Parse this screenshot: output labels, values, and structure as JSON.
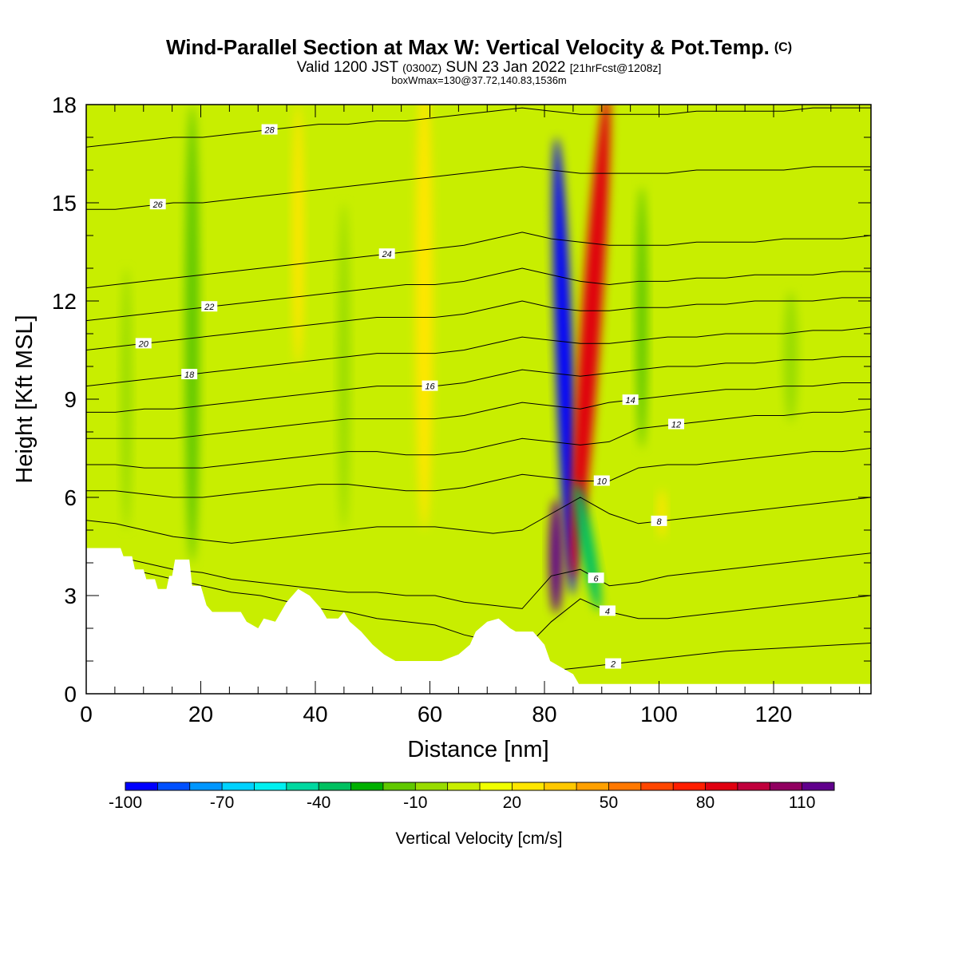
{
  "titles": {
    "main": "Wind-Parallel Section at Max W: Vertical Velocity & Pot.Temp.",
    "copyright_mark": "(C)",
    "valid_prefix": "Valid 1200 JST",
    "valid_zulu": "(0300Z)",
    "valid_date": "SUN 23 Jan 2022",
    "forecast": "[21hrFcst@1208z]",
    "box_info": "boxWmax=130@37.72,140.83,1536m"
  },
  "chart_data": {
    "type": "heatmap",
    "xlabel": "Distance [nm]",
    "ylabel": "Height [Kft MSL]",
    "xlim": [
      0,
      137
    ],
    "ylim": [
      0,
      18
    ],
    "x_ticks": [
      0,
      20,
      40,
      60,
      80,
      100,
      120
    ],
    "y_ticks": [
      0,
      3,
      6,
      9,
      12,
      15,
      18
    ],
    "colorbar": {
      "label": "Vertical Velocity [cm/s]",
      "tick_labels": [
        "-100",
        "-70",
        "-40",
        "-10",
        "20",
        "50",
        "80",
        "110"
      ],
      "colors": [
        "#0000ff",
        "#0050ff",
        "#0096ff",
        "#00d2ff",
        "#00f0f0",
        "#00d8a0",
        "#00c060",
        "#00b000",
        "#60c800",
        "#98dc00",
        "#c8ee00",
        "#f0ff00",
        "#ffe600",
        "#ffc800",
        "#ffa000",
        "#ff7800",
        "#ff4600",
        "#ff1e00",
        "#e00010",
        "#c0003c",
        "#900060",
        "#60008c"
      ]
    },
    "background_updraft_color": "#c8ee00",
    "terrain_profile": [
      [
        0,
        4.45
      ],
      [
        6,
        4.45
      ],
      [
        6.5,
        4.2
      ],
      [
        8,
        4.2
      ],
      [
        8.5,
        3.8
      ],
      [
        10,
        3.8
      ],
      [
        10.5,
        3.5
      ],
      [
        12,
        3.5
      ],
      [
        12.5,
        3.2
      ],
      [
        14,
        3.2
      ],
      [
        14.5,
        3.6
      ],
      [
        15,
        3.6
      ],
      [
        15.5,
        4.1
      ],
      [
        18,
        4.1
      ],
      [
        18.5,
        3.3
      ],
      [
        20,
        3.3
      ],
      [
        21,
        2.7
      ],
      [
        22,
        2.5
      ],
      [
        27,
        2.5
      ],
      [
        28,
        2.2
      ],
      [
        30,
        2.0
      ],
      [
        31,
        2.3
      ],
      [
        33,
        2.2
      ],
      [
        35,
        2.8
      ],
      [
        37,
        3.2
      ],
      [
        39,
        3.0
      ],
      [
        41,
        2.6
      ],
      [
        42,
        2.3
      ],
      [
        44,
        2.3
      ],
      [
        45,
        2.5
      ],
      [
        46,
        2.2
      ],
      [
        48,
        1.9
      ],
      [
        50,
        1.5
      ],
      [
        52,
        1.2
      ],
      [
        54,
        1.0
      ],
      [
        62,
        1.0
      ],
      [
        65,
        1.2
      ],
      [
        67,
        1.5
      ],
      [
        68,
        1.9
      ],
      [
        70,
        2.2
      ],
      [
        72,
        2.3
      ],
      [
        74,
        2.0
      ],
      [
        75,
        1.9
      ],
      [
        78,
        1.9
      ],
      [
        80,
        1.5
      ],
      [
        81,
        1.0
      ],
      [
        83,
        0.8
      ],
      [
        85,
        0.6
      ],
      [
        86,
        0.3
      ],
      [
        137,
        0.3
      ]
    ],
    "vertical_velocity_features": [
      {
        "name": "downdraft-core",
        "x": 83.5,
        "y": 10.0,
        "width": 3.0,
        "height": 14.0,
        "value": -100,
        "rotate": -2
      },
      {
        "name": "updraft-core",
        "x": 88.0,
        "y": 11.0,
        "width": 3.5,
        "height": 15.0,
        "value": 80,
        "rotate": 4
      },
      {
        "name": "low-level-updraft",
        "x": 82.0,
        "y": 4.2,
        "width": 2.4,
        "height": 3.5,
        "value": 110,
        "rotate": 0
      },
      {
        "name": "low-level-downdraft",
        "x": 87.5,
        "y": 4.5,
        "width": 2.5,
        "height": 4.0,
        "value": -40,
        "rotate": -10
      },
      {
        "name": "downdraft-west",
        "x": 18.5,
        "y": 11.0,
        "width": 2.5,
        "height": 14.0,
        "value": -20,
        "rotate": 0
      },
      {
        "name": "downdraft-east",
        "x": 97.0,
        "y": 11.5,
        "width": 2.0,
        "height": 8.0,
        "value": -20,
        "rotate": 0
      },
      {
        "name": "downdraft-far-east",
        "x": 123.0,
        "y": 10.3,
        "width": 2.5,
        "height": 4.0,
        "value": -10,
        "rotate": 0
      },
      {
        "name": "updraft-band-60",
        "x": 59.0,
        "y": 12.0,
        "width": 3.0,
        "height": 14.0,
        "value": 20,
        "rotate": 0
      },
      {
        "name": "updraft-band-37",
        "x": 37.0,
        "y": 14.0,
        "width": 2.0,
        "height": 8.0,
        "value": 20,
        "rotate": 0
      },
      {
        "name": "updraft-band-100",
        "x": 100.5,
        "y": 5.5,
        "width": 1.5,
        "height": 1.5,
        "value": 20,
        "rotate": 0
      },
      {
        "name": "downdraft-band-45",
        "x": 45.0,
        "y": 10.0,
        "width": 2.0,
        "height": 10.0,
        "value": -10,
        "rotate": 0
      },
      {
        "name": "downdraft-band-8",
        "x": 7.0,
        "y": 9.0,
        "width": 1.8,
        "height": 8.0,
        "value": -10,
        "rotate": 0
      }
    ],
    "theta_contours": [
      {
        "label": "2",
        "y": [
          0.6,
          0.6,
          0.6,
          0.6,
          0.6,
          0.6,
          0.6,
          0.6,
          0.6,
          0.6,
          0.6,
          0.6,
          0.6,
          0.55,
          0.55,
          0.6,
          0.7,
          0.8,
          0.9,
          1.0,
          1.1,
          1.2,
          1.3,
          1.35,
          1.4,
          1.45,
          1.5,
          1.55
        ],
        "label_at": 92
      },
      {
        "label": "4",
        "y": [
          3.8,
          3.8,
          3.7,
          3.5,
          3.3,
          3.1,
          3.0,
          2.8,
          2.6,
          2.5,
          2.3,
          2.2,
          2.1,
          1.8,
          1.6,
          1.3,
          2.2,
          2.9,
          2.5,
          2.3,
          2.3,
          2.4,
          2.5,
          2.6,
          2.7,
          2.8,
          2.9,
          3.0
        ],
        "label_at": 91
      },
      {
        "label": "6",
        "y": [
          4.2,
          4.2,
          4.0,
          3.8,
          3.7,
          3.5,
          3.4,
          3.3,
          3.2,
          3.1,
          3.1,
          3.0,
          3.0,
          2.8,
          2.7,
          2.6,
          3.6,
          3.8,
          3.3,
          3.4,
          3.6,
          3.7,
          3.8,
          3.9,
          4.0,
          4.1,
          4.2,
          4.3
        ],
        "label_at": 89
      },
      {
        "label": "8",
        "y": [
          5.3,
          5.2,
          5.0,
          4.8,
          4.7,
          4.6,
          4.7,
          4.8,
          4.9,
          5.0,
          5.1,
          5.1,
          5.1,
          5.0,
          4.9,
          5.0,
          5.5,
          6.0,
          5.5,
          5.2,
          5.3,
          5.4,
          5.5,
          5.6,
          5.7,
          5.8,
          5.9,
          6.0
        ],
        "label_at": 100
      },
      {
        "label": "10",
        "y": [
          6.2,
          6.2,
          6.1,
          6.0,
          6.0,
          6.1,
          6.2,
          6.3,
          6.4,
          6.4,
          6.3,
          6.2,
          6.2,
          6.3,
          6.5,
          6.7,
          6.6,
          6.5,
          6.5,
          6.9,
          7.0,
          7.0,
          7.1,
          7.2,
          7.3,
          7.4,
          7.4,
          7.5
        ],
        "label_at": 90
      },
      {
        "label": "12",
        "y": [
          7.0,
          7.0,
          6.9,
          6.9,
          6.9,
          7.0,
          7.1,
          7.2,
          7.3,
          7.4,
          7.4,
          7.3,
          7.3,
          7.4,
          7.6,
          7.8,
          7.7,
          7.6,
          7.7,
          8.1,
          8.2,
          8.3,
          8.4,
          8.5,
          8.5,
          8.6,
          8.6,
          8.7
        ],
        "label_at": 103
      },
      {
        "label": "14",
        "y": [
          7.8,
          7.8,
          7.8,
          7.8,
          7.9,
          8.0,
          8.1,
          8.2,
          8.3,
          8.4,
          8.4,
          8.4,
          8.4,
          8.5,
          8.7,
          8.9,
          8.8,
          8.7,
          8.9,
          9.0,
          9.1,
          9.2,
          9.3,
          9.3,
          9.4,
          9.4,
          9.5,
          9.5
        ],
        "label_at": 95
      },
      {
        "label": "16",
        "y": [
          8.6,
          8.6,
          8.7,
          8.7,
          8.8,
          8.9,
          9.0,
          9.1,
          9.2,
          9.3,
          9.4,
          9.4,
          9.4,
          9.5,
          9.7,
          9.9,
          9.8,
          9.7,
          9.8,
          9.9,
          10.0,
          10.0,
          10.1,
          10.1,
          10.2,
          10.2,
          10.3,
          10.3
        ],
        "label_at": 60
      },
      {
        "label": "18",
        "y": [
          9.4,
          9.5,
          9.6,
          9.7,
          9.8,
          9.9,
          10.0,
          10.1,
          10.2,
          10.3,
          10.4,
          10.4,
          10.4,
          10.5,
          10.7,
          10.9,
          10.8,
          10.7,
          10.7,
          10.8,
          10.9,
          10.9,
          11.0,
          11.0,
          11.0,
          11.1,
          11.1,
          11.2
        ],
        "label_at": 18
      },
      {
        "label": "20",
        "y": [
          10.5,
          10.6,
          10.7,
          10.8,
          10.9,
          11.0,
          11.1,
          11.2,
          11.3,
          11.4,
          11.5,
          11.5,
          11.5,
          11.6,
          11.8,
          12.0,
          11.8,
          11.7,
          11.7,
          11.8,
          11.8,
          11.9,
          11.9,
          12.0,
          12.0,
          12.0,
          12.1,
          12.1
        ],
        "label_at": 10
      },
      {
        "label": "22",
        "y": [
          11.4,
          11.5,
          11.6,
          11.7,
          11.8,
          11.9,
          12.0,
          12.1,
          12.2,
          12.3,
          12.4,
          12.5,
          12.5,
          12.6,
          12.8,
          13.0,
          12.8,
          12.6,
          12.5,
          12.6,
          12.6,
          12.7,
          12.7,
          12.8,
          12.8,
          12.8,
          12.9,
          12.9
        ],
        "label_at": 21.5
      },
      {
        "label": "24",
        "y": [
          12.4,
          12.5,
          12.6,
          12.7,
          12.8,
          12.9,
          13.0,
          13.1,
          13.2,
          13.3,
          13.4,
          13.5,
          13.6,
          13.7,
          13.9,
          14.1,
          13.9,
          13.8,
          13.7,
          13.7,
          13.7,
          13.8,
          13.8,
          13.8,
          13.9,
          13.9,
          13.9,
          14.0
        ],
        "label_at": 52.5
      },
      {
        "label": "26",
        "y": [
          14.8,
          14.8,
          14.9,
          15.0,
          15.0,
          15.1,
          15.2,
          15.3,
          15.4,
          15.5,
          15.6,
          15.7,
          15.8,
          15.9,
          16.0,
          16.1,
          16.0,
          15.9,
          15.9,
          15.9,
          15.9,
          16.0,
          16.0,
          16.0,
          16.0,
          16.1,
          16.1,
          16.1
        ],
        "label_at": 12.5
      },
      {
        "label": "28",
        "y": [
          16.7,
          16.8,
          16.9,
          17.0,
          17.0,
          17.1,
          17.2,
          17.3,
          17.4,
          17.4,
          17.5,
          17.5,
          17.6,
          17.7,
          17.8,
          17.9,
          17.8,
          17.7,
          17.7,
          17.7,
          17.7,
          17.8,
          17.8,
          17.8,
          17.8,
          17.9,
          17.9,
          17.9
        ],
        "label_at": 32
      }
    ]
  }
}
